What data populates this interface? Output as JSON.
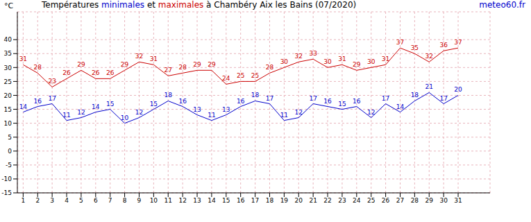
{
  "chart_data": {
    "type": "line",
    "title": "Températures minimales et maximales à Chambéry Aix les Bains (07/2020)",
    "source": "meteo60.fr",
    "y_label": "°C",
    "x": [
      1,
      2,
      3,
      4,
      5,
      6,
      7,
      8,
      9,
      10,
      11,
      12,
      13,
      14,
      15,
      16,
      17,
      18,
      19,
      20,
      21,
      22,
      23,
      24,
      25,
      26,
      27,
      28,
      29,
      30,
      31
    ],
    "series": [
      {
        "name": "minimales",
        "color": "#0000cc",
        "values": [
          14,
          16,
          17,
          11,
          12,
          14,
          15,
          10,
          12,
          15,
          18,
          16,
          13,
          11,
          13,
          16,
          18,
          17,
          11,
          12,
          17,
          16,
          15,
          16,
          12,
          17,
          14,
          18,
          21,
          17,
          20
        ]
      },
      {
        "name": "maximales",
        "color": "#cc0000",
        "values": [
          31,
          28,
          23,
          26,
          29,
          26,
          26,
          29,
          32,
          31,
          27,
          28,
          29,
          29,
          24,
          25,
          25,
          28,
          30,
          32,
          33,
          30,
          31,
          29,
          30,
          31,
          37,
          35,
          32,
          36,
          37
        ]
      }
    ],
    "xlim": [
      0.6,
      33.2
    ],
    "xticks": [
      1,
      2,
      3,
      4,
      5,
      6,
      7,
      8,
      9,
      10,
      11,
      12,
      13,
      14,
      15,
      16,
      17,
      18,
      19,
      20,
      21,
      22,
      23,
      24,
      25,
      26,
      27,
      28,
      29,
      30,
      31
    ],
    "ylim": [
      -15,
      50
    ],
    "yticks": [
      -15,
      -10,
      -5,
      0,
      5,
      10,
      15,
      20,
      25,
      30,
      35,
      40
    ],
    "grid": true,
    "data_labels": true
  }
}
